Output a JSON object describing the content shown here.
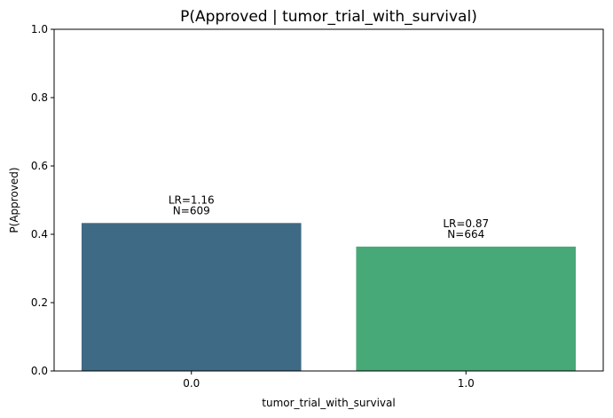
{
  "chart_data": {
    "type": "bar",
    "title": "P(Approved | tumor_trial_with_survival)",
    "xlabel": "tumor_trial_with_survival",
    "ylabel": "P(Approved)",
    "ylim": [
      0,
      1
    ],
    "yticks": [
      "0.0",
      "0.2",
      "0.4",
      "0.6",
      "0.8",
      "1.0"
    ],
    "categories": [
      "0.0",
      "1.0"
    ],
    "values": [
      0.433,
      0.364
    ],
    "colors": [
      "#3e6a85",
      "#47a878"
    ],
    "annotations": [
      {
        "lr": "LR=1.16",
        "n": "N=609"
      },
      {
        "lr": "LR=0.87",
        "n": "N=664"
      }
    ],
    "grid": false,
    "legend": "none"
  }
}
